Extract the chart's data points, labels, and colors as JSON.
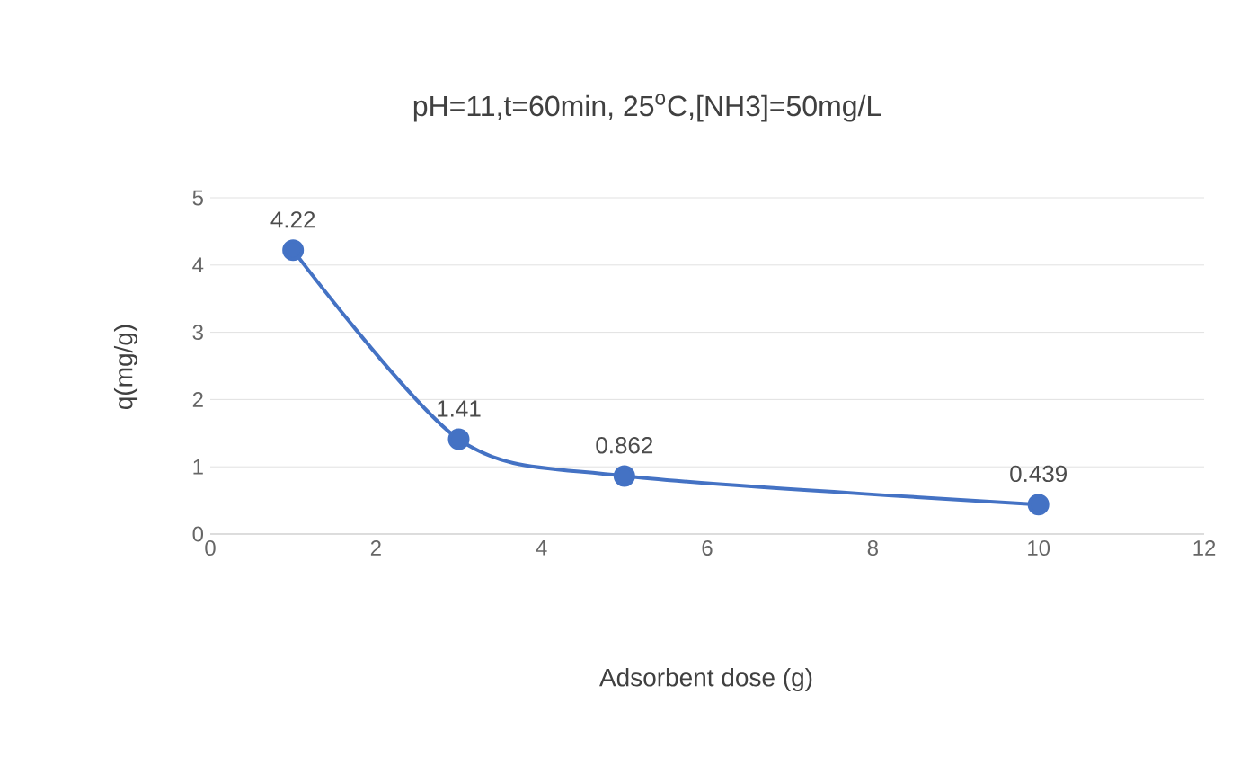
{
  "chart_data": {
    "type": "line",
    "title": "pH=11,t=60min, 25$^{o}$C,[NH3]=50mg/L",
    "xlabel": "Adsorbent dose (g)",
    "ylabel": "q(mg/g)",
    "x": [
      1,
      3,
      5,
      10
    ],
    "series": [
      {
        "color": "#4472c4",
        "values": [
          4.22,
          1.41,
          0.862,
          0.439
        ]
      }
    ],
    "xlim": [
      0,
      12
    ],
    "xticks": [
      0,
      2,
      4,
      6,
      8,
      10,
      12
    ],
    "ylim": [
      0,
      5
    ],
    "yticks": [
      0,
      1,
      2,
      3,
      4,
      5
    ],
    "grid": "y",
    "marker": "circle",
    "line_style": "solid",
    "data_labels": true
  }
}
